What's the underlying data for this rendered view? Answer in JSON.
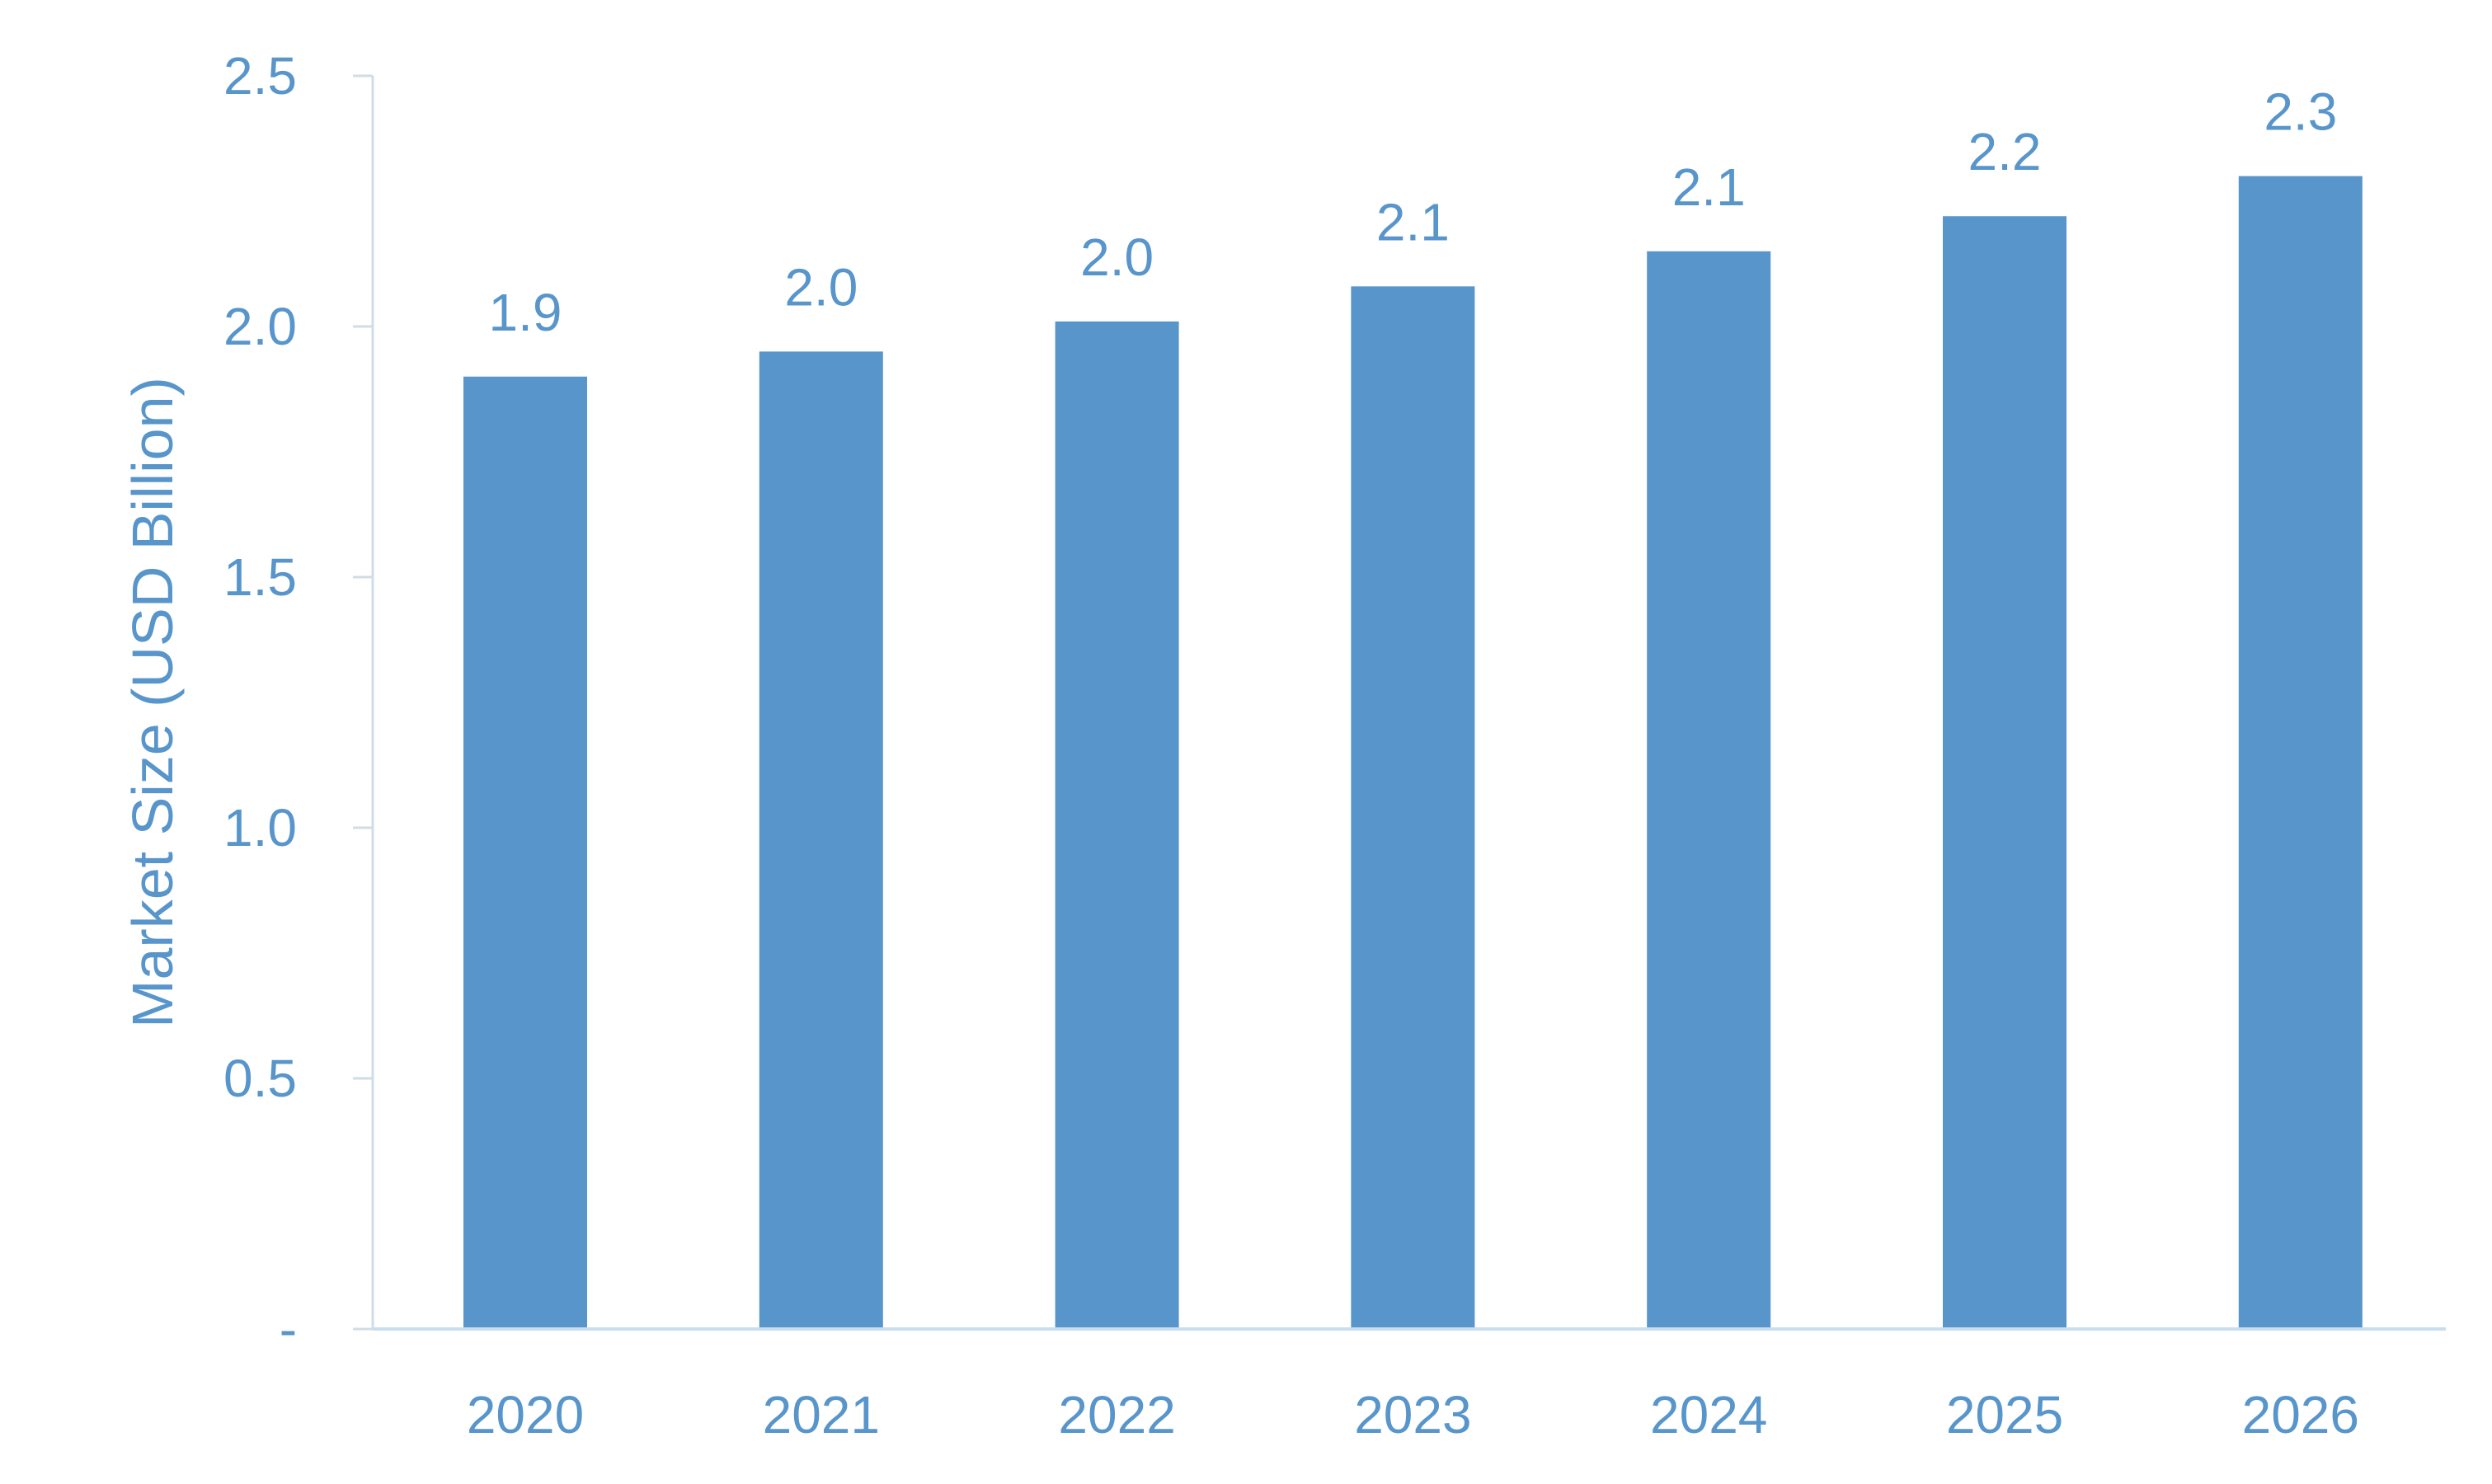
{
  "colors": {
    "bar": "#5895CB",
    "text": "#5895CB",
    "axis": "#D0DCE6",
    "baseline": "#C8DDF0"
  },
  "chart_data": {
    "type": "bar",
    "title": "",
    "xlabel": "",
    "ylabel": "Market Size (USD Billion)",
    "categories": [
      "2020",
      "2021",
      "2022",
      "2023",
      "2024",
      "2025",
      "2026"
    ],
    "values": [
      1.9,
      1.95,
      2.01,
      2.08,
      2.15,
      2.22,
      2.3
    ],
    "data_labels": [
      "1.9",
      "2.0",
      "2.0",
      "2.1",
      "2.1",
      "2.2",
      "2.3"
    ],
    "ylim": [
      0,
      2.5
    ],
    "yticks": [
      0,
      0.5,
      1.0,
      1.5,
      2.0,
      2.5
    ],
    "ytick_labels": [
      "-",
      "0.5",
      "1.0",
      "1.5",
      "2.0",
      "2.5"
    ],
    "grid": false,
    "legend": "none"
  }
}
